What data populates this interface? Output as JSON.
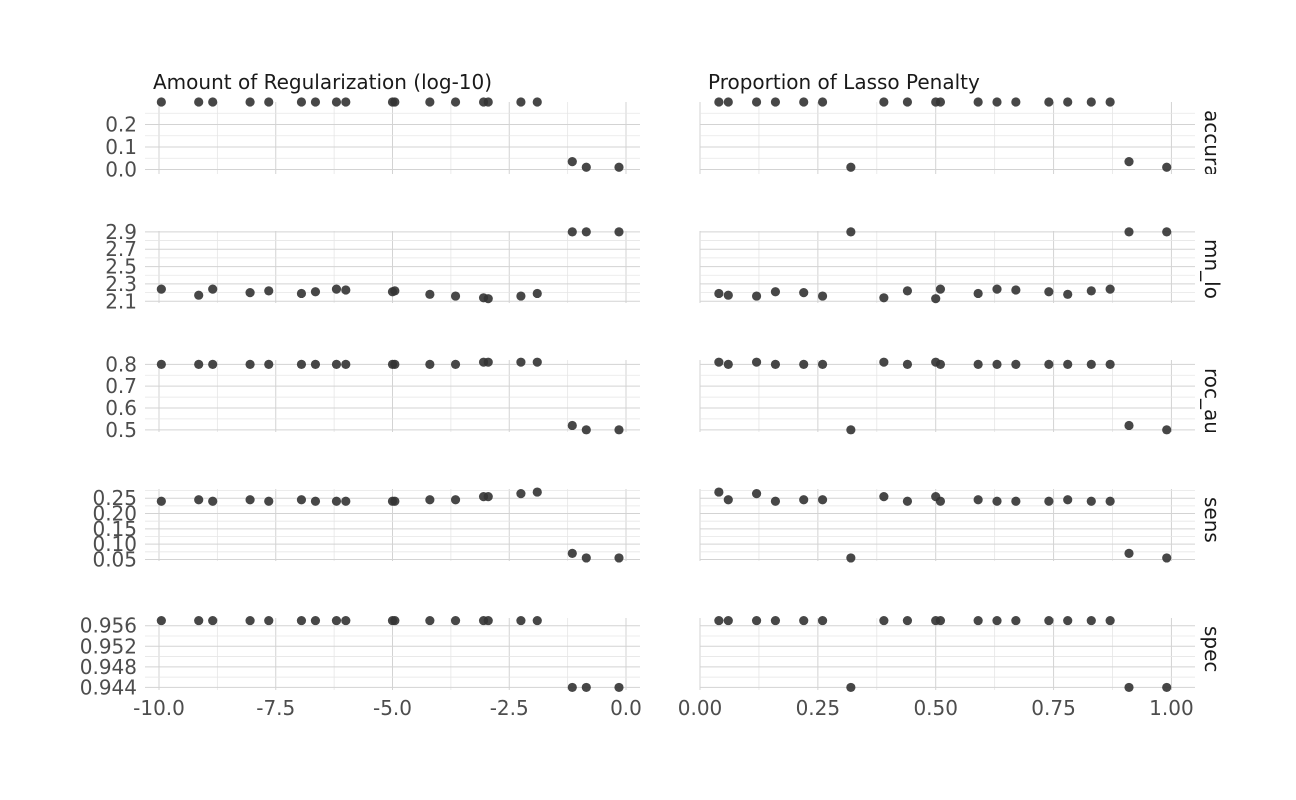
{
  "chart_data": {
    "type": "scatter",
    "facets": [
      {
        "key": "regularization",
        "title": "Amount of Regularization (log-10)",
        "xlim": [
          -10.3,
          0.3
        ],
        "ticks": [
          -10,
          -7.5,
          -5,
          -2.5,
          0
        ],
        "tick_labels": [
          "-10.0",
          "-7.5",
          "-5.0",
          "-2.5",
          "0.0"
        ]
      },
      {
        "key": "mixture",
        "title": "Proportion of Lasso Penalty",
        "xlim": [
          0,
          1.05
        ],
        "ticks": [
          0,
          0.25,
          0.5,
          0.75,
          1
        ],
        "tick_labels": [
          "0.00",
          "0.25",
          "0.50",
          "0.75",
          "1.00"
        ]
      }
    ],
    "configs": [
      {
        "log10_penalty": -9.95,
        "mixture": 0.63
      },
      {
        "log10_penalty": -9.15,
        "mixture": 0.06
      },
      {
        "log10_penalty": -8.85,
        "mixture": 0.51
      },
      {
        "log10_penalty": -8.05,
        "mixture": 0.22
      },
      {
        "log10_penalty": -7.65,
        "mixture": 0.83
      },
      {
        "log10_penalty": -6.95,
        "mixture": 0.59
      },
      {
        "log10_penalty": -6.65,
        "mixture": 0.74
      },
      {
        "log10_penalty": -6.2,
        "mixture": 0.87
      },
      {
        "log10_penalty": -6.0,
        "mixture": 0.67
      },
      {
        "log10_penalty": -5.0,
        "mixture": 0.16
      },
      {
        "log10_penalty": -4.95,
        "mixture": 0.44
      },
      {
        "log10_penalty": -4.2,
        "mixture": 0.78
      },
      {
        "log10_penalty": -3.65,
        "mixture": 0.26
      },
      {
        "log10_penalty": -3.05,
        "mixture": 0.39
      },
      {
        "log10_penalty": -2.95,
        "mixture": 0.5
      },
      {
        "log10_penalty": -2.25,
        "mixture": 0.12
      },
      {
        "log10_penalty": -1.9,
        "mixture": 0.04
      },
      {
        "log10_penalty": -1.15,
        "mixture": 0.91
      },
      {
        "log10_penalty": -0.85,
        "mixture": 0.32
      },
      {
        "log10_penalty": -0.15,
        "mixture": 0.99
      }
    ],
    "metrics": [
      {
        "name": "accura",
        "ylim": [
          -0.02,
          0.3
        ],
        "major": [
          0,
          0.1,
          0.2
        ],
        "labels": [
          "0.0",
          "0.1",
          "0.2"
        ],
        "minor": [
          0.05,
          0.15,
          0.25
        ],
        "values": [
          0.3,
          0.3,
          0.3,
          0.3,
          0.3,
          0.3,
          0.3,
          0.3,
          0.3,
          0.3,
          0.3,
          0.3,
          0.3,
          0.3,
          0.3,
          0.3,
          0.3,
          0.035,
          0.01,
          0.01
        ]
      },
      {
        "name": "mn_lo",
        "ylim": [
          2.08,
          2.91
        ],
        "major": [
          2.1,
          2.3,
          2.5,
          2.7,
          2.9
        ],
        "labels": [
          "2.1",
          "2.3",
          "2.5",
          "2.7",
          "2.9"
        ],
        "minor": [
          2.2,
          2.4,
          2.6,
          2.8
        ],
        "values": [
          2.24,
          2.17,
          2.24,
          2.2,
          2.22,
          2.19,
          2.21,
          2.24,
          2.23,
          2.21,
          2.22,
          2.18,
          2.16,
          2.14,
          2.13,
          2.16,
          2.19,
          2.9,
          2.9,
          2.9
        ]
      },
      {
        "name": "roc_au",
        "ylim": [
          0.49,
          0.82
        ],
        "major": [
          0.5,
          0.6,
          0.7,
          0.8
        ],
        "labels": [
          "0.5",
          "0.6",
          "0.7",
          "0.8"
        ],
        "minor": [
          0.55,
          0.65,
          0.75
        ],
        "values": [
          0.8,
          0.8,
          0.8,
          0.8,
          0.8,
          0.8,
          0.8,
          0.8,
          0.8,
          0.8,
          0.8,
          0.8,
          0.8,
          0.81,
          0.81,
          0.81,
          0.81,
          0.52,
          0.5,
          0.5
        ]
      },
      {
        "name": "sens",
        "ylim": [
          0.045,
          0.28
        ],
        "major": [
          0.05,
          0.1,
          0.15,
          0.2,
          0.25
        ],
        "labels": [
          "0.05",
          "0.10",
          "0.15",
          "0.20",
          "0.25"
        ],
        "minor": [
          0.075,
          0.125,
          0.175,
          0.225,
          0.275
        ],
        "values": [
          0.24,
          0.245,
          0.24,
          0.245,
          0.24,
          0.245,
          0.24,
          0.24,
          0.24,
          0.24,
          0.24,
          0.245,
          0.245,
          0.255,
          0.255,
          0.265,
          0.27,
          0.07,
          0.055,
          0.055
        ]
      },
      {
        "name": "spec",
        "ylim": [
          0.9435,
          0.9575
        ],
        "major": [
          0.944,
          0.948,
          0.952,
          0.956
        ],
        "labels": [
          "0.944",
          "0.948",
          "0.952",
          "0.956"
        ],
        "minor": [
          0.946,
          0.95,
          0.954
        ],
        "values": [
          0.957,
          0.957,
          0.957,
          0.957,
          0.957,
          0.957,
          0.957,
          0.957,
          0.957,
          0.957,
          0.957,
          0.957,
          0.957,
          0.957,
          0.957,
          0.957,
          0.957,
          0.944,
          0.944,
          0.944
        ]
      }
    ],
    "grid": true,
    "legend": "none"
  }
}
